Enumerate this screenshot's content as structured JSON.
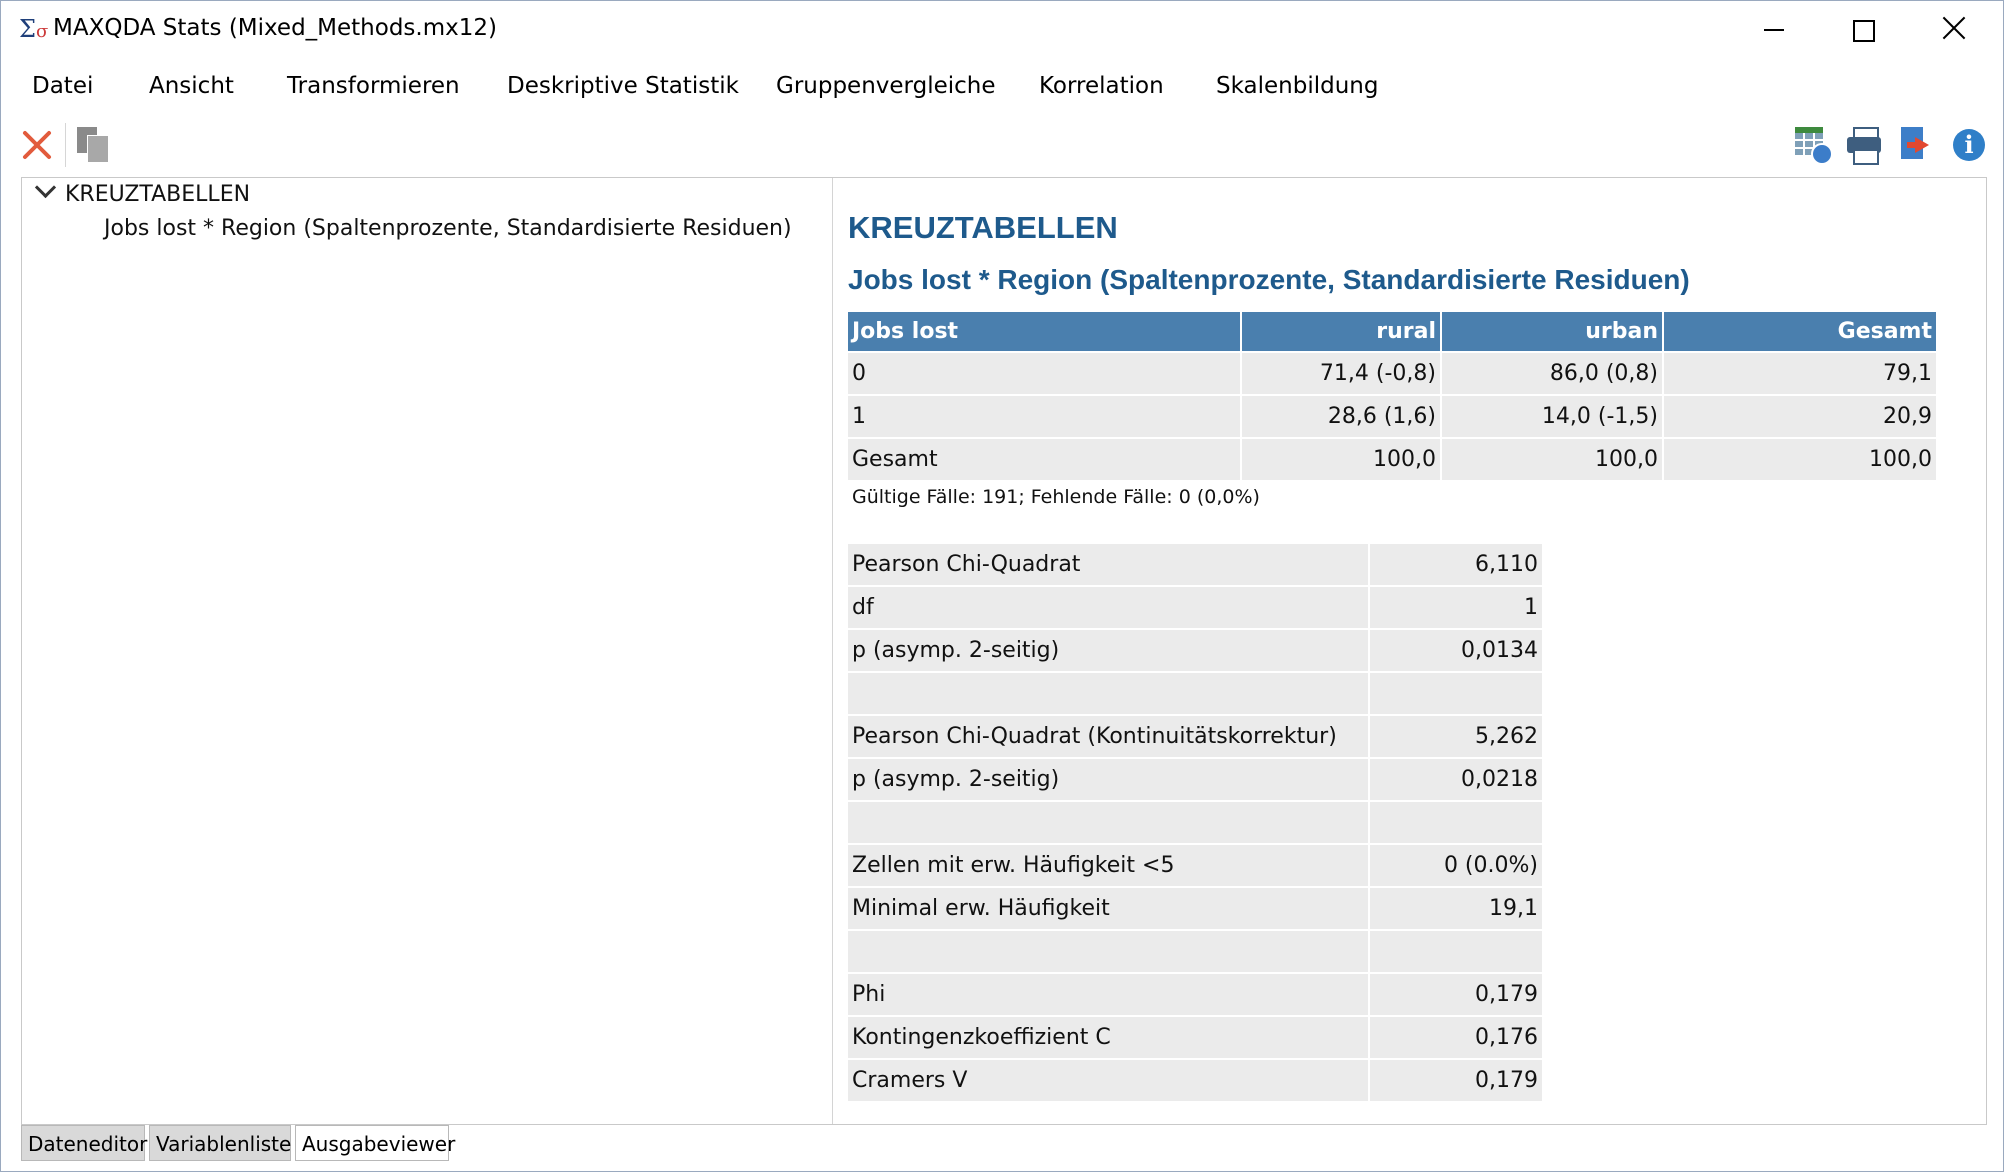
{
  "window": {
    "title": "MAXQDA Stats (Mixed_Methods.mx12)"
  },
  "menu": {
    "items": [
      "Datei",
      "Ansicht",
      "Transformieren",
      "Deskriptive Statistik",
      "Gruppenvergleiche",
      "Korrelation",
      "Skalenbildung"
    ]
  },
  "toolbar": {
    "left_icons": [
      "close-red-x-icon",
      "copy-icon"
    ],
    "right_icons": [
      "export-table-icon",
      "print-icon",
      "export-icon",
      "info-icon"
    ],
    "accent_colors": {
      "delete": "#e25b3c",
      "info": "#2f7fc8"
    }
  },
  "tree": {
    "root": "KREUZTABELLEN",
    "child": "Jobs lost * Region (Spaltenprozente, Standardisierte Residuen)"
  },
  "output": {
    "heading": "KREUZTABELLEN",
    "subheading": "Jobs lost * Region (Spaltenprozente, Standardisierte Residuen)",
    "heading_color": "#1e5a8c",
    "crosstab": {
      "headers": [
        "Jobs lost",
        "rural",
        "urban",
        "Gesamt"
      ],
      "rows": [
        [
          "0",
          "71,4 (-0,8)",
          "86,0 (0,8)",
          "79,1"
        ],
        [
          "1",
          "28,6 (1,6)",
          "14,0 (-1,5)",
          "20,9"
        ],
        [
          "Gesamt",
          "100,0",
          "100,0",
          "100,0"
        ]
      ]
    },
    "note": "Gültige Fälle: 191; Fehlende Fälle: 0 (0,0%)",
    "stats": [
      [
        "Pearson Chi-Quadrat",
        "6,110"
      ],
      [
        "df",
        "1"
      ],
      [
        "p (asymp. 2-seitig)",
        "0,0134"
      ],
      [
        "",
        ""
      ],
      [
        "Pearson Chi-Quadrat (Kontinuitätskorrektur)",
        "5,262"
      ],
      [
        "p (asymp. 2-seitig)",
        "0,0218"
      ],
      [
        "",
        ""
      ],
      [
        "Zellen mit erw. Häufigkeit <5",
        "0 (0.0%)"
      ],
      [
        "Minimal erw. Häufigkeit",
        "19,1"
      ],
      [
        "",
        ""
      ],
      [
        "Phi",
        "0,179"
      ],
      [
        "Kontingenzkoeffizient C",
        "0,176"
      ],
      [
        "Cramers V",
        "0,179"
      ]
    ]
  },
  "tabs": {
    "items": [
      "Dateneditor",
      "Variablenliste",
      "Ausgabeviewer"
    ],
    "active": "Ausgabeviewer"
  }
}
